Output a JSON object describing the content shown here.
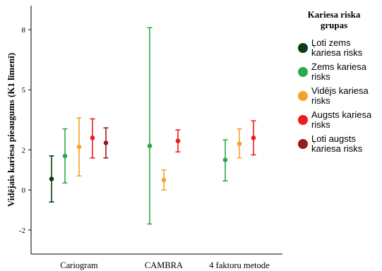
{
  "chart_data": {
    "type": "errorbar",
    "title": "",
    "xlabel": "",
    "ylabel": "Vidējais kariesa pieaugums (K1 līmenī)",
    "ylim": [
      -3.2,
      9.2
    ],
    "yticks": [
      -2,
      0,
      2,
      5,
      8
    ],
    "grid": false,
    "categories": [
      "Cariogram",
      "CAMBRA",
      "4 faktoru metode"
    ],
    "legend": {
      "title_lines": [
        "Kariesa riska",
        "grupas"
      ],
      "placement": "right"
    },
    "series": [
      {
        "name_lines": [
          "Ļoti zems",
          "kariesa risks"
        ],
        "color": "#0d3b12",
        "points": [
          {
            "category": "Cariogram",
            "mean": 0.55,
            "low": -0.6,
            "high": 1.7
          }
        ]
      },
      {
        "name_lines": [
          "Zems kariesa",
          "risks"
        ],
        "color": "#2ea84a",
        "points": [
          {
            "category": "Cariogram",
            "mean": 1.7,
            "low": 0.35,
            "high": 3.05
          },
          {
            "category": "CAMBRA",
            "mean": 2.2,
            "low": -1.7,
            "high": 8.1
          },
          {
            "category": "4 faktoru metode",
            "mean": 1.5,
            "low": 0.45,
            "high": 2.5
          }
        ]
      },
      {
        "name_lines": [
          "Vidējs kariesa",
          "risks"
        ],
        "color": "#f5a22b",
        "points": [
          {
            "category": "Cariogram",
            "mean": 2.15,
            "low": 0.7,
            "high": 3.6
          },
          {
            "category": "CAMBRA",
            "mean": 0.5,
            "low": 0.0,
            "high": 1.0
          },
          {
            "category": "4 faktoru metode",
            "mean": 2.3,
            "low": 1.6,
            "high": 3.05
          }
        ]
      },
      {
        "name_lines": [
          "Augsts kariesa",
          "risks"
        ],
        "color": "#ee1c1c",
        "points": [
          {
            "category": "Cariogram",
            "mean": 2.6,
            "low": 1.6,
            "high": 3.55
          },
          {
            "category": "CAMBRA",
            "mean": 2.45,
            "low": 1.9,
            "high": 3.0
          },
          {
            "category": "4 faktoru metode",
            "mean": 2.6,
            "low": 1.75,
            "high": 3.45
          }
        ]
      },
      {
        "name_lines": [
          "Ļoti augsts",
          "kariesa risks"
        ],
        "color": "#9a1b1b",
        "points": [
          {
            "category": "Cariogram",
            "mean": 2.35,
            "low": 1.6,
            "high": 3.1
          }
        ]
      }
    ]
  }
}
